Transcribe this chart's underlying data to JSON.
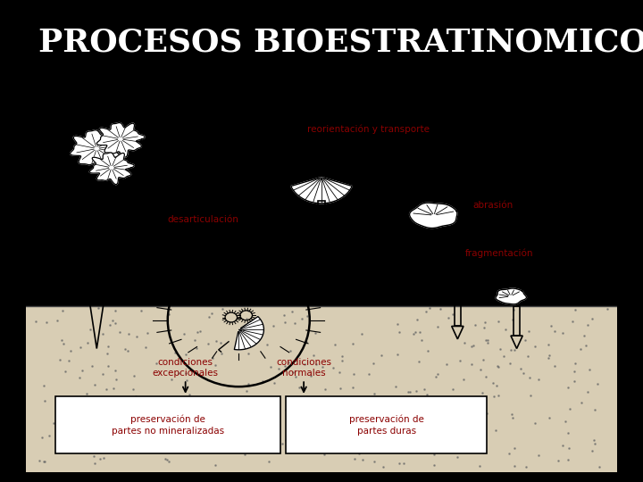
{
  "title": "PROCESOS BIOESTRATINOMICOS",
  "title_color": "#FFFFFF",
  "bg_color": "#000000",
  "diagram_bg": "#FFFFFF",
  "sandy_color": "#D8CDB4",
  "label_color": "#8B0000",
  "label_fontsize": 7.5,
  "labels": {
    "reorientacion": "reorientación y transporte",
    "abrasion": "abrasión",
    "desarticulacion": "desarticulación",
    "fragmentacion": "fragmentación",
    "condiciones_exc": "condiciones\nexcepcionales",
    "condiciones_norm": "condiciones\nnormales",
    "preservacion_no": "preservación de\npartes no mineralizadas",
    "preservacion_duras": "preservación de\npartes duras"
  }
}
